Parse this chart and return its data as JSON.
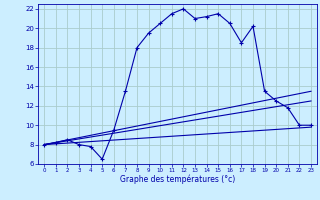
{
  "title": "Graphe des températures (°c)",
  "bg_color": "#cceeff",
  "grid_color": "#aacccc",
  "line_color": "#0000aa",
  "xlim": [
    -0.5,
    23.5
  ],
  "ylim": [
    6,
    22.5
  ],
  "xticks": [
    0,
    1,
    2,
    3,
    4,
    5,
    6,
    7,
    8,
    9,
    10,
    11,
    12,
    13,
    14,
    15,
    16,
    17,
    18,
    19,
    20,
    21,
    22,
    23
  ],
  "yticks": [
    6,
    8,
    10,
    12,
    14,
    16,
    18,
    20,
    22
  ],
  "curve1_x": [
    0,
    1,
    2,
    3,
    4,
    5,
    6,
    7,
    8,
    9,
    10,
    11,
    12,
    13,
    14,
    15,
    16,
    17,
    18,
    19,
    20,
    21,
    22,
    23
  ],
  "curve1_y": [
    8.0,
    8.2,
    8.5,
    8.0,
    7.8,
    6.5,
    9.5,
    13.5,
    18.0,
    19.5,
    20.5,
    21.5,
    22.0,
    21.0,
    21.2,
    21.5,
    20.5,
    18.5,
    20.2,
    13.5,
    12.5,
    11.8,
    10.0,
    10.0
  ],
  "curve2_x": [
    0,
    23
  ],
  "curve2_y": [
    8.0,
    9.8
  ],
  "curve3_x": [
    0,
    23
  ],
  "curve3_y": [
    8.0,
    12.5
  ],
  "curve4_x": [
    0,
    23
  ],
  "curve4_y": [
    8.0,
    13.5
  ]
}
